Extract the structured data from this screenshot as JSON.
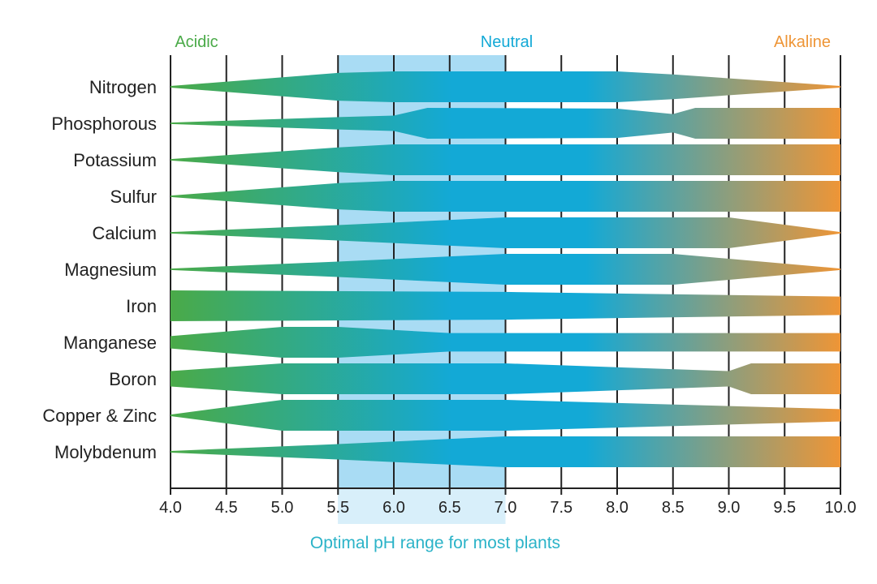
{
  "chart_data": {
    "type": "band",
    "zone_labels": {
      "acidic": "Acidic",
      "neutral": "Neutral",
      "alkaline": "Alkaline"
    },
    "caption": "Optimal pH range for most plants",
    "optimal_range": [
      5.5,
      7.0
    ],
    "x_range": [
      4.0,
      10.0
    ],
    "x_ticks": [
      "4.0",
      "4.5",
      "5.0",
      "5.5",
      "6.0",
      "6.5",
      "7.0",
      "7.5",
      "8.0",
      "8.5",
      "9.0",
      "9.5",
      "10.0"
    ],
    "max_width_relative": 1.0,
    "nutrients": [
      {
        "name": "Nitrogen",
        "availability": [
          [
            4.0,
            0.05
          ],
          [
            5.5,
            0.9
          ],
          [
            6.0,
            1.0
          ],
          [
            8.0,
            1.0
          ],
          [
            8.5,
            0.8
          ],
          [
            9.5,
            0.3
          ],
          [
            10.0,
            0.05
          ]
        ]
      },
      {
        "name": "Phosphorous",
        "availability": [
          [
            4.0,
            0.05
          ],
          [
            5.5,
            0.4
          ],
          [
            6.0,
            0.5
          ],
          [
            6.3,
            1.0
          ],
          [
            8.0,
            0.95
          ],
          [
            8.5,
            0.6
          ],
          [
            8.7,
            1.0
          ],
          [
            10.0,
            1.0
          ]
        ]
      },
      {
        "name": "Potassium",
        "availability": [
          [
            4.0,
            0.05
          ],
          [
            5.5,
            0.8
          ],
          [
            6.0,
            1.0
          ],
          [
            10.0,
            1.0
          ]
        ]
      },
      {
        "name": "Sulfur",
        "availability": [
          [
            4.0,
            0.05
          ],
          [
            5.5,
            0.85
          ],
          [
            6.0,
            1.0
          ],
          [
            10.0,
            1.0
          ]
        ]
      },
      {
        "name": "Calcium",
        "availability": [
          [
            4.0,
            0.05
          ],
          [
            5.5,
            0.5
          ],
          [
            7.0,
            1.0
          ],
          [
            9.0,
            1.0
          ],
          [
            10.0,
            0.05
          ]
        ]
      },
      {
        "name": "Magnesium",
        "availability": [
          [
            4.0,
            0.05
          ],
          [
            5.5,
            0.5
          ],
          [
            7.0,
            1.0
          ],
          [
            8.5,
            1.0
          ],
          [
            10.0,
            0.05
          ]
        ]
      },
      {
        "name": "Iron",
        "availability": [
          [
            4.0,
            1.0
          ],
          [
            7.0,
            0.9
          ],
          [
            10.0,
            0.6
          ]
        ]
      },
      {
        "name": "Manganese",
        "availability": [
          [
            4.0,
            0.4
          ],
          [
            5.0,
            1.0
          ],
          [
            5.5,
            1.0
          ],
          [
            6.5,
            0.6
          ],
          [
            10.0,
            0.6
          ]
        ]
      },
      {
        "name": "Boron",
        "availability": [
          [
            4.0,
            0.5
          ],
          [
            5.0,
            1.0
          ],
          [
            7.0,
            1.0
          ],
          [
            9.0,
            0.5
          ],
          [
            9.2,
            1.0
          ],
          [
            10.0,
            1.0
          ]
        ]
      },
      {
        "name": "Copper & Zinc",
        "availability": [
          [
            4.0,
            0.05
          ],
          [
            5.0,
            1.0
          ],
          [
            7.0,
            1.0
          ],
          [
            10.0,
            0.4
          ]
        ]
      },
      {
        "name": "Molybdenum",
        "availability": [
          [
            4.0,
            0.05
          ],
          [
            5.5,
            0.5
          ],
          [
            7.0,
            1.0
          ],
          [
            10.0,
            1.0
          ]
        ]
      }
    ],
    "colors": {
      "acidic": "#4aaa48",
      "neutral": "#13a9d6",
      "alkaline": "#ee9536",
      "optimal_fill": "#a9dcf4",
      "gridline": "#222222",
      "caption": "#2bb3c8"
    }
  }
}
